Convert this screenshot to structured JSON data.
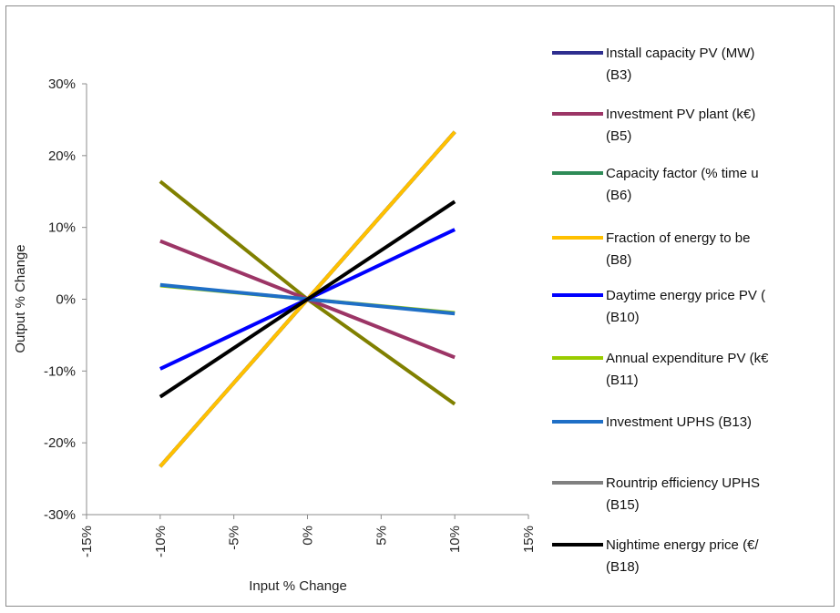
{
  "chart_data": {
    "type": "line",
    "xlabel": "Input % Change",
    "ylabel": "Output % Change",
    "xlim": [
      -15,
      15
    ],
    "ylim": [
      -30,
      30
    ],
    "x_ticks": [
      -15,
      -10,
      -5,
      0,
      5,
      10,
      15
    ],
    "x_tick_labels": [
      "-15%",
      "-10%",
      "-5%",
      "0%",
      "5%",
      "10%",
      "15%"
    ],
    "y_ticks": [
      30,
      20,
      10,
      0,
      -10,
      -20,
      -30
    ],
    "y_tick_labels": [
      "30%",
      "20%",
      "10%",
      "0%",
      "-10%",
      "-20%",
      "-30%"
    ],
    "grid": false,
    "legend_position": "right",
    "x": [
      -10,
      0,
      10
    ],
    "series": [
      {
        "name": "Install capacity PV (MW)",
        "ref": "(B3)",
        "color": "#2e2e8f",
        "values": [
          -23.3,
          0,
          23.3
        ]
      },
      {
        "name": "Investment PV plant (k€)",
        "ref": "(B5)",
        "color": "#9c3566",
        "values": [
          8.1,
          0,
          -8.1
        ]
      },
      {
        "name": "Capacity factor (% time u",
        "ref": "(B6)",
        "color": "#2e8b57",
        "values": [
          -23.3,
          0,
          23.3
        ]
      },
      {
        "name": "Fraction of energy to be",
        "ref": "(B8)",
        "color": "#ffc000",
        "values": [
          -23.3,
          0,
          23.3
        ]
      },
      {
        "name": "Daytime energy price PV (",
        "ref": "(B10)",
        "color": "#0000ff",
        "values": [
          -9.7,
          0,
          9.7
        ]
      },
      {
        "name": "Annual expenditure PV (k€",
        "ref": "(B11)",
        "color": "#99cc00",
        "values": [
          1.9,
          0,
          -1.9
        ]
      },
      {
        "name": "Investment UPHS (B13)",
        "ref": "",
        "color": "#1f6fc6",
        "values": [
          2.0,
          0,
          -2.0
        ]
      },
      {
        "name": "Rountrip efficiency UPHS",
        "ref": "(B15)",
        "color": "#808080",
        "values": [
          -23.3,
          0,
          23.3
        ]
      },
      {
        "name": "Nightime energy price (€/",
        "ref": "(B18)",
        "color": "#000000",
        "values": [
          -13.6,
          0,
          13.6
        ]
      }
    ],
    "unlabeled_series": [
      {
        "color": "#808000",
        "values": [
          16.4,
          0,
          -14.6
        ]
      }
    ]
  }
}
